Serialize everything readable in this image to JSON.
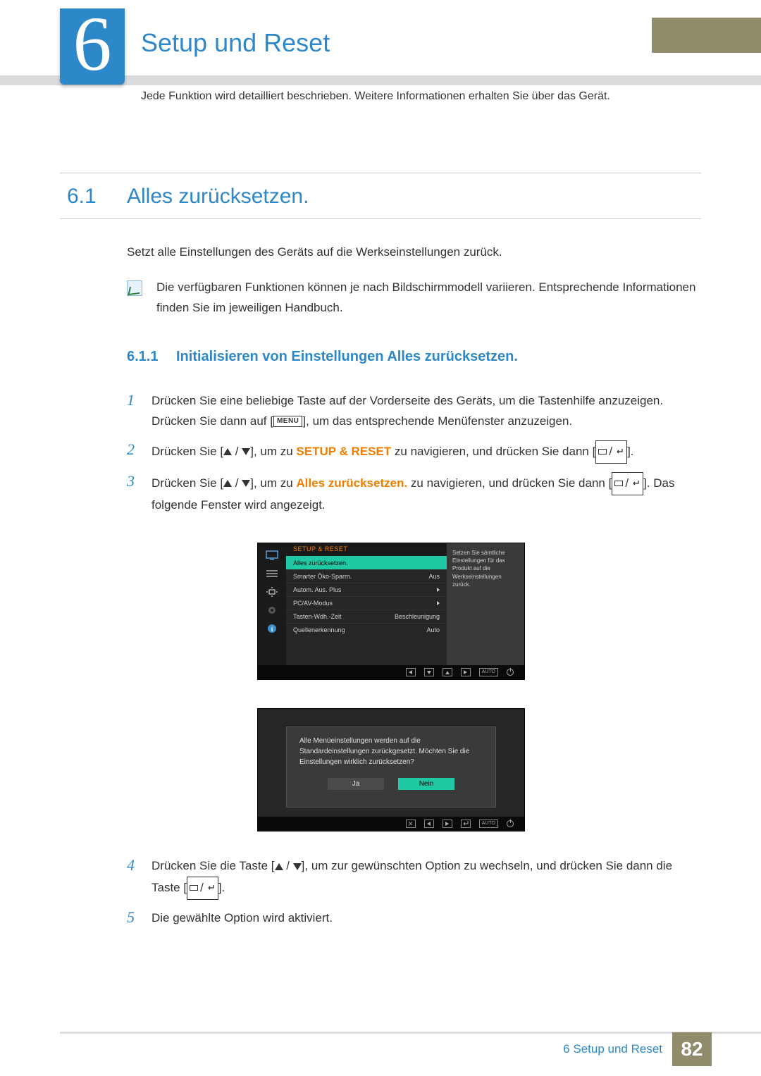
{
  "chapter": {
    "number": "6",
    "title": "Setup und Reset",
    "description": "Jede Funktion wird detailliert beschrieben. Weitere Informationen erhalten Sie über das Gerät."
  },
  "section": {
    "number": "6.1",
    "title": "Alles zurücksetzen.",
    "intro": "Setzt alle Einstellungen des Geräts auf die Werkseinstellungen zurück.",
    "note": "Die verfügbaren Funktionen können je nach Bildschirmmodell variieren. Entsprechende Informationen finden Sie im jeweiligen Handbuch."
  },
  "subsection": {
    "number": "6.1.1",
    "title": "Initialisieren von Einstellungen Alles zurücksetzen."
  },
  "steps": {
    "s1a": "Drücken Sie eine beliebige Taste auf der Vorderseite des Geräts, um die Tastenhilfe anzuzeigen. Drücken Sie dann auf [",
    "s1b": "], um das entsprechende Menüfenster anzuzeigen.",
    "menu_label": "MENU",
    "s2a": "Drücken Sie [",
    "s2b": "], um zu ",
    "s2c": "SETUP & RESET",
    "s2d": " zu navigieren, und drücken Sie dann [",
    "s2e": "].",
    "s3a": "Drücken Sie [",
    "s3b": "], um zu ",
    "s3c": "Alles zurücksetzen.",
    "s3d": " zu navigieren, und drücken Sie dann [",
    "s3e": "]. Das folgende Fenster wird angezeigt.",
    "s4a": "Drücken Sie die Taste [",
    "s4b": "], um zur gewünschten Option zu wechseln, und drücken Sie dann die Taste [",
    "s4c": "].",
    "s5": "Die gewählte Option wird aktiviert."
  },
  "osd1": {
    "header": "SETUP & RESET",
    "rows": [
      {
        "label": "Alles zurücksetzen.",
        "value": "",
        "active": true
      },
      {
        "label": "Smarter Öko-Sparm.",
        "value": "Aus",
        "active": false
      },
      {
        "label": "Autom. Aus. Plus",
        "value": "▸",
        "active": false
      },
      {
        "label": "PC/AV-Modus",
        "value": "▸",
        "active": false
      },
      {
        "label": "Tasten-Wdh.-Zeit",
        "value": "Beschleunigung",
        "active": false
      },
      {
        "label": "Quellenerkennung",
        "value": "Auto",
        "active": false
      }
    ],
    "help": "Setzen Sie sämtliche Einstellungen für das Produkt auf die Werkseinstellungen zurück.",
    "nav_auto": "AUTO"
  },
  "osd2": {
    "message": "Alle Menüeinstellungen werden auf die Standardeinstellungen zurückgesetzt. Möchten Sie die Einstellungen wirklich zurücksetzen?",
    "yes": "Ja",
    "no": "Nein",
    "nav_auto": "AUTO"
  },
  "footer": {
    "chapter_ref": "6 Setup und Reset",
    "page": "82"
  },
  "colors": {
    "accent_blue": "#2c88c8",
    "olive": "#8f8b6b",
    "orange": "#ef7e00",
    "osd_highlight": "#1fc9a4",
    "grey_bar": "#dbdcdd"
  }
}
